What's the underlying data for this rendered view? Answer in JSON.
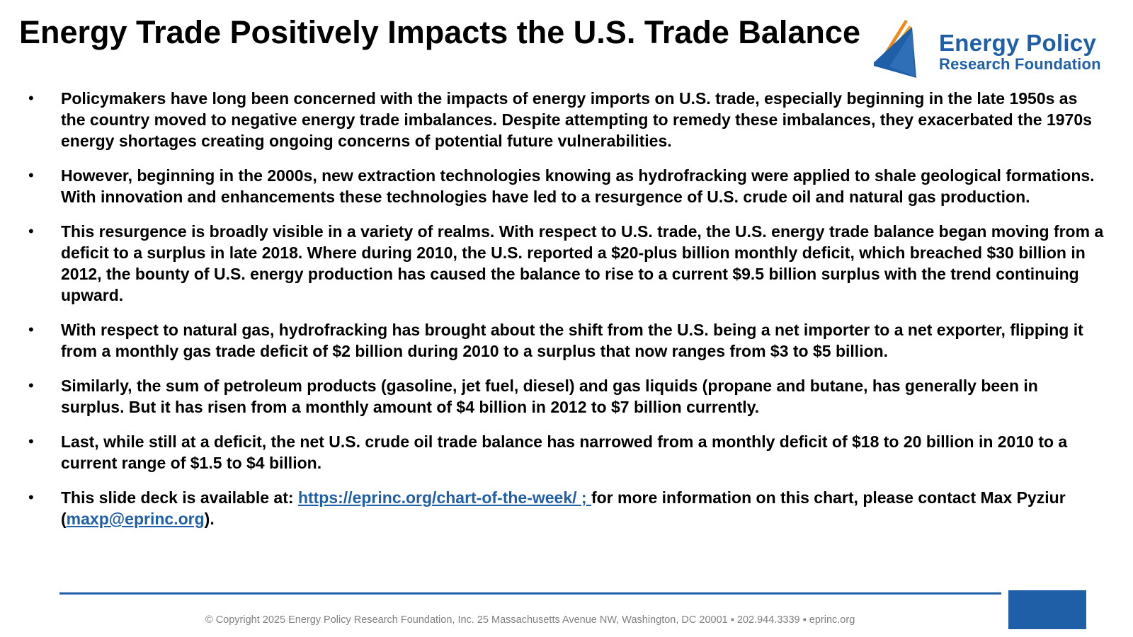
{
  "title": "Energy Trade Positively Impacts the U.S. Trade Balance",
  "logo": {
    "line1": "Energy Policy",
    "line2": "Research Foundation",
    "icon": "orange-blue-sail-mark-icon"
  },
  "bullets": [
    {
      "marker": "•",
      "text": "Policymakers have long been concerned with the impacts of energy imports on U.S. trade, especially beginning in the late 1950s as the country moved to negative energy trade imbalances. Despite attempting to remedy these imbalances, they exacerbated the 1970s energy shortages creating ongoing concerns of potential future vulnerabilities."
    },
    {
      "marker": "•",
      "text": "However, beginning in the 2000s, new extraction technologies knowing as hydrofracking were applied to shale geological formations. With innovation and enhancements these technologies have led to a resurgence of U.S. crude oil and natural gas production."
    },
    {
      "marker": "•",
      "text": "This resurgence is broadly visible in a variety of realms. With respect to U.S. trade, the U.S. energy trade balance began moving from a deficit to a surplus in late 2018. Where during 2010, the U.S. reported a $20-plus billion monthly deficit, which breached $30 billion in 2012, the bounty of U.S. energy production has caused the balance to rise to a current $9.5 billion surplus with the trend continuing upward."
    },
    {
      "marker": "•",
      "text": "With respect to natural gas, hydrofracking has brought about the shift from the U.S. being a net importer to a net exporter, flipping it from a monthly gas trade deficit of $2 billion during 2010 to a surplus that now ranges from $3 to $5 billion."
    },
    {
      "marker": "•",
      "text": "Similarly, the sum of petroleum products (gasoline, jet fuel, diesel) and gas liquids (propane and butane, has generally been in surplus. But it has risen from a monthly amount of $4 billion in 2012 to $7 billion currently."
    },
    {
      "marker": "•",
      "text": "Last, while still at a deficit, the net U.S. crude oil trade balance has narrowed from a monthly deficit of $18 to 20 billion in 2010 to a current range of $1.5 to $4 billion."
    }
  ],
  "contact": {
    "marker": "•",
    "prefix": "This slide deck is available at: ",
    "link_text": "https://eprinc.org/chart-of-the-week/ ; ",
    "middle": "for more information on this chart, please contact Max Pyziur (",
    "email_text": "maxp@eprinc.org",
    "suffix": ")."
  },
  "footer": {
    "text": "© Copyright 2025 Energy Policy Research Foundation, Inc. 25 Massachusetts Avenue NW, Washington, DC 20001 ▪ 202.944.3339 ▪ eprinc.org"
  },
  "colors": {
    "brand_blue": "#1f5fa8",
    "brand_orange": "#f08a1c",
    "footer_gray": "#808080"
  }
}
